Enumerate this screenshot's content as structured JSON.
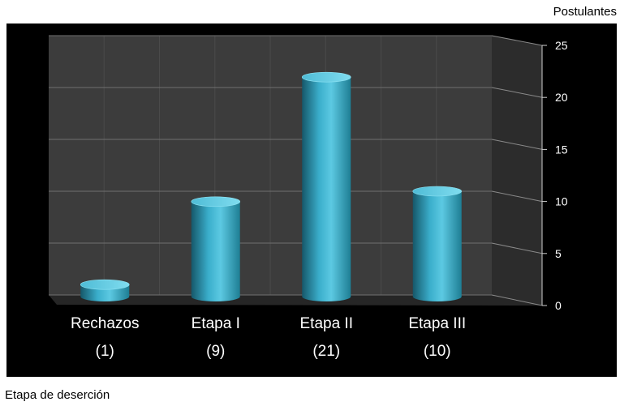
{
  "chart_data": {
    "type": "bar",
    "categories": [
      "Rechazos",
      "Etapa I",
      "Etapa II",
      "Etapa III"
    ],
    "category_counts": [
      "(1)",
      "(9)",
      "(21)",
      "(10)"
    ],
    "values": [
      1,
      9,
      21,
      10
    ],
    "ylabel": "Postulantes",
    "xlabel": "Etapa de deserción",
    "ylim": [
      0,
      25
    ],
    "yticks": [
      0,
      5,
      10,
      15,
      20,
      25
    ],
    "yaxis_side": "right",
    "grid": true,
    "style": "3d-cylinder",
    "colors": {
      "bar": "#3fb2cc",
      "background": "#000000",
      "wall": "#3c3c3c",
      "floor": "#262626",
      "text": "#ffffff"
    }
  }
}
